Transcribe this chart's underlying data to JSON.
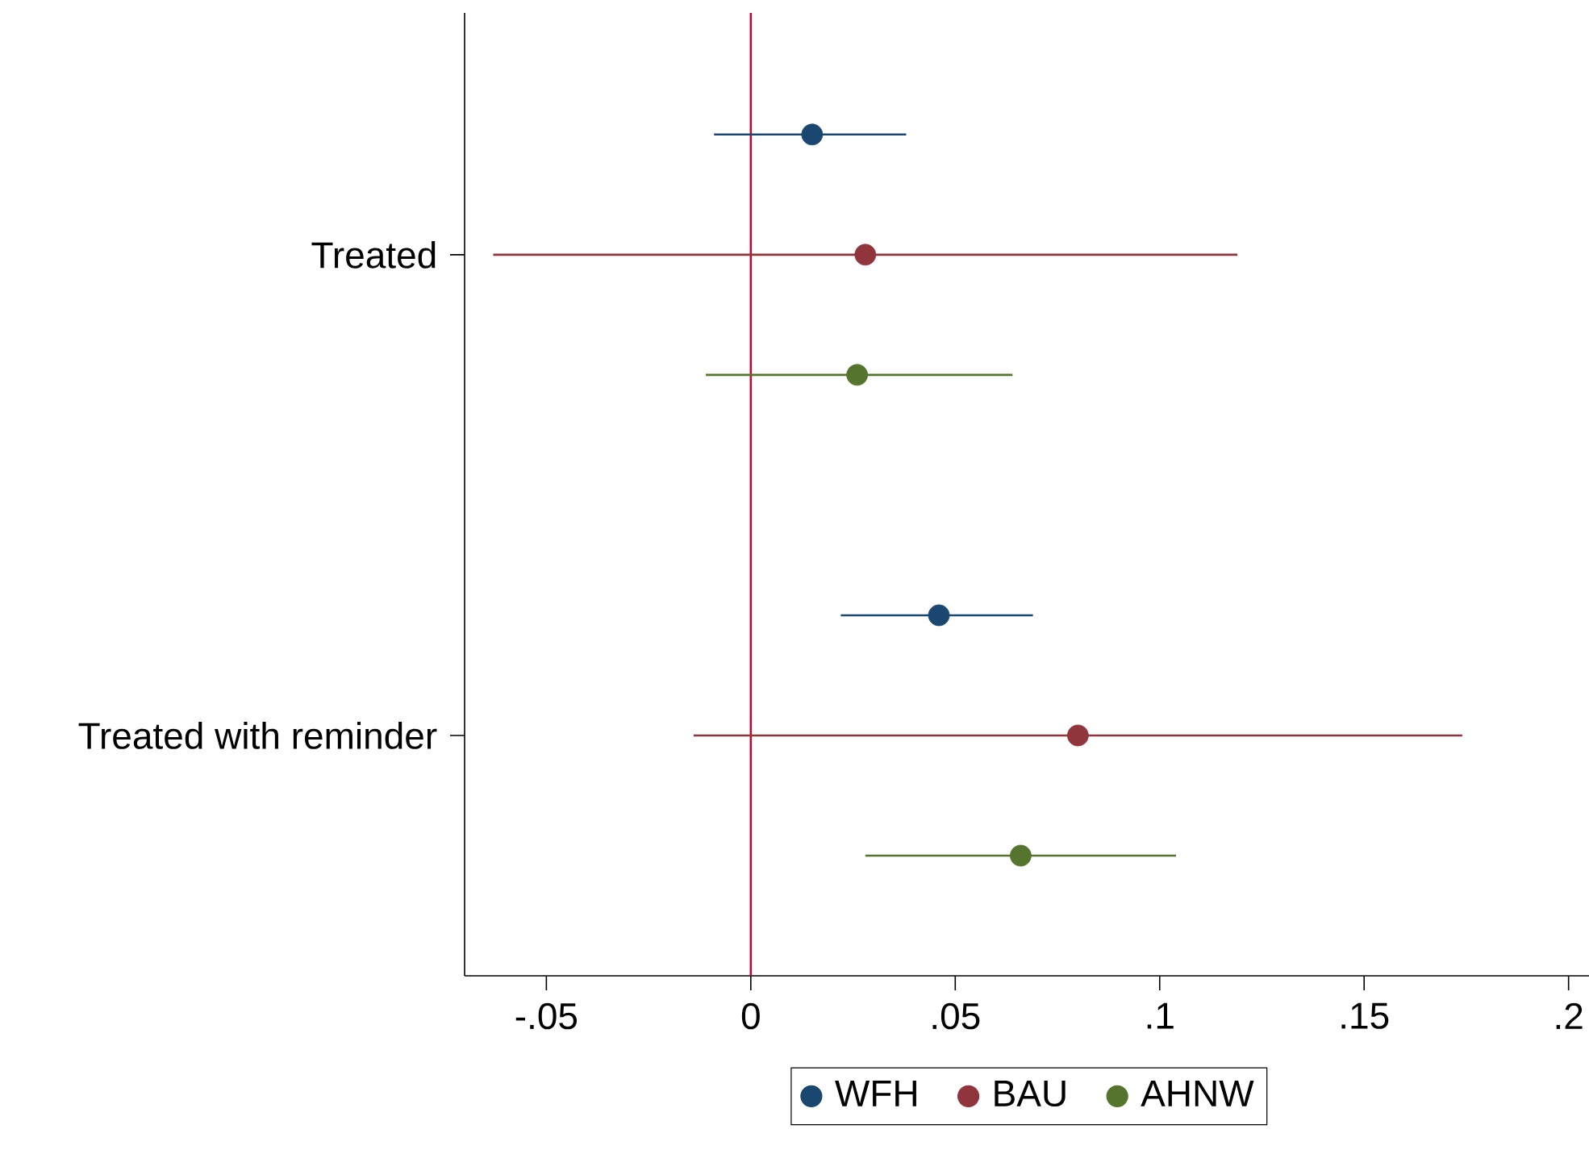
{
  "chart_data": {
    "type": "scatter",
    "orientation": "horizontal",
    "categories": [
      "Treated",
      "Treated with reminder"
    ],
    "series": [
      {
        "name": "WFH",
        "color": "#1a476f",
        "values": [
          0.015,
          0.046
        ],
        "errors": [
          [
            -0.009,
            0.038
          ],
          [
            0.022,
            0.069
          ]
        ]
      },
      {
        "name": "BAU",
        "color": "#90353b",
        "values": [
          0.028,
          0.08
        ],
        "errors": [
          [
            -0.063,
            0.119
          ],
          [
            -0.014,
            0.174
          ]
        ]
      },
      {
        "name": "AHNW",
        "color": "#55752f",
        "values": [
          0.026,
          0.066
        ],
        "errors": [
          [
            -0.011,
            0.064
          ],
          [
            0.028,
            0.104
          ]
        ]
      }
    ],
    "xlim": [
      -0.07,
      0.205
    ],
    "xticks": [
      {
        "value": -0.05,
        "label": "-.05"
      },
      0,
      {
        "value": 0.05,
        "label": ".05"
      },
      {
        "value": 0.1,
        "label": ".1"
      },
      {
        "value": 0.15,
        "label": ".15"
      },
      {
        "value": 0.2,
        "label": ".2"
      }
    ],
    "ref_lines": [
      {
        "axis": "x",
        "value": 0,
        "color": "#c10534"
      }
    ],
    "legend": "bottom",
    "marker": "circle"
  }
}
